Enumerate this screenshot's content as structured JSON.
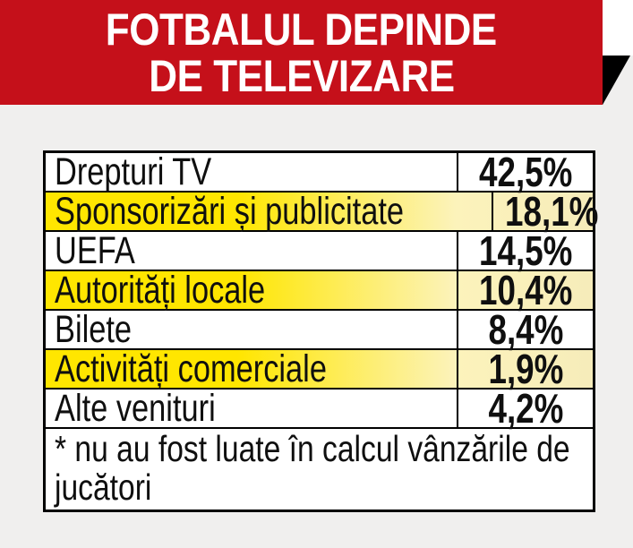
{
  "banner": {
    "title_line1": "FOTBALUL DEPINDE",
    "title_line2": "DE TELEVIZARE"
  },
  "table": {
    "rows": [
      {
        "label": "Drepturi TV",
        "value": "42,5%",
        "highlight": false
      },
      {
        "label": "Sponsorizări și publicitate",
        "value": "18,1%",
        "highlight": true
      },
      {
        "label": "UEFA",
        "value": "14,5%",
        "highlight": false
      },
      {
        "label": "Autorități locale",
        "value": "10,4%",
        "highlight": true
      },
      {
        "label": "Bilete",
        "value": "8,4%",
        "highlight": false
      },
      {
        "label": "Activități comerciale",
        "value": "1,9%",
        "highlight": true
      },
      {
        "label": "Alte venituri",
        "value": "4,2%",
        "highlight": false
      }
    ],
    "footnote": "* nu au fost luate în calcul vânzările de jucători"
  },
  "colors": {
    "banner_red": "#c5101a",
    "highlight_yellow": "#ffe600",
    "highlight_fade": "#f6ecba",
    "background_gray": "#f0efee",
    "fold_black": "#000000",
    "border_black": "#000000"
  },
  "chart_data": {
    "type": "table",
    "title": "FOTBALUL DEPINDE DE TELEVIZARE",
    "categories": [
      "Drepturi TV",
      "Sponsorizări și publicitate",
      "UEFA",
      "Autorități locale",
      "Bilete",
      "Activități comerciale",
      "Alte venituri"
    ],
    "values": [
      42.5,
      18.1,
      14.5,
      10.4,
      8.4,
      1.9,
      4.2
    ],
    "unit": "%",
    "value_format": "comma-decimal",
    "highlighted_rows": [
      "Sponsorizări și publicitate",
      "Autorități locale",
      "Activități comerciale"
    ],
    "footnote": "* nu au fost luate în calcul vânzările de jucători",
    "legend_position": "none",
    "grid": "table-borders"
  }
}
